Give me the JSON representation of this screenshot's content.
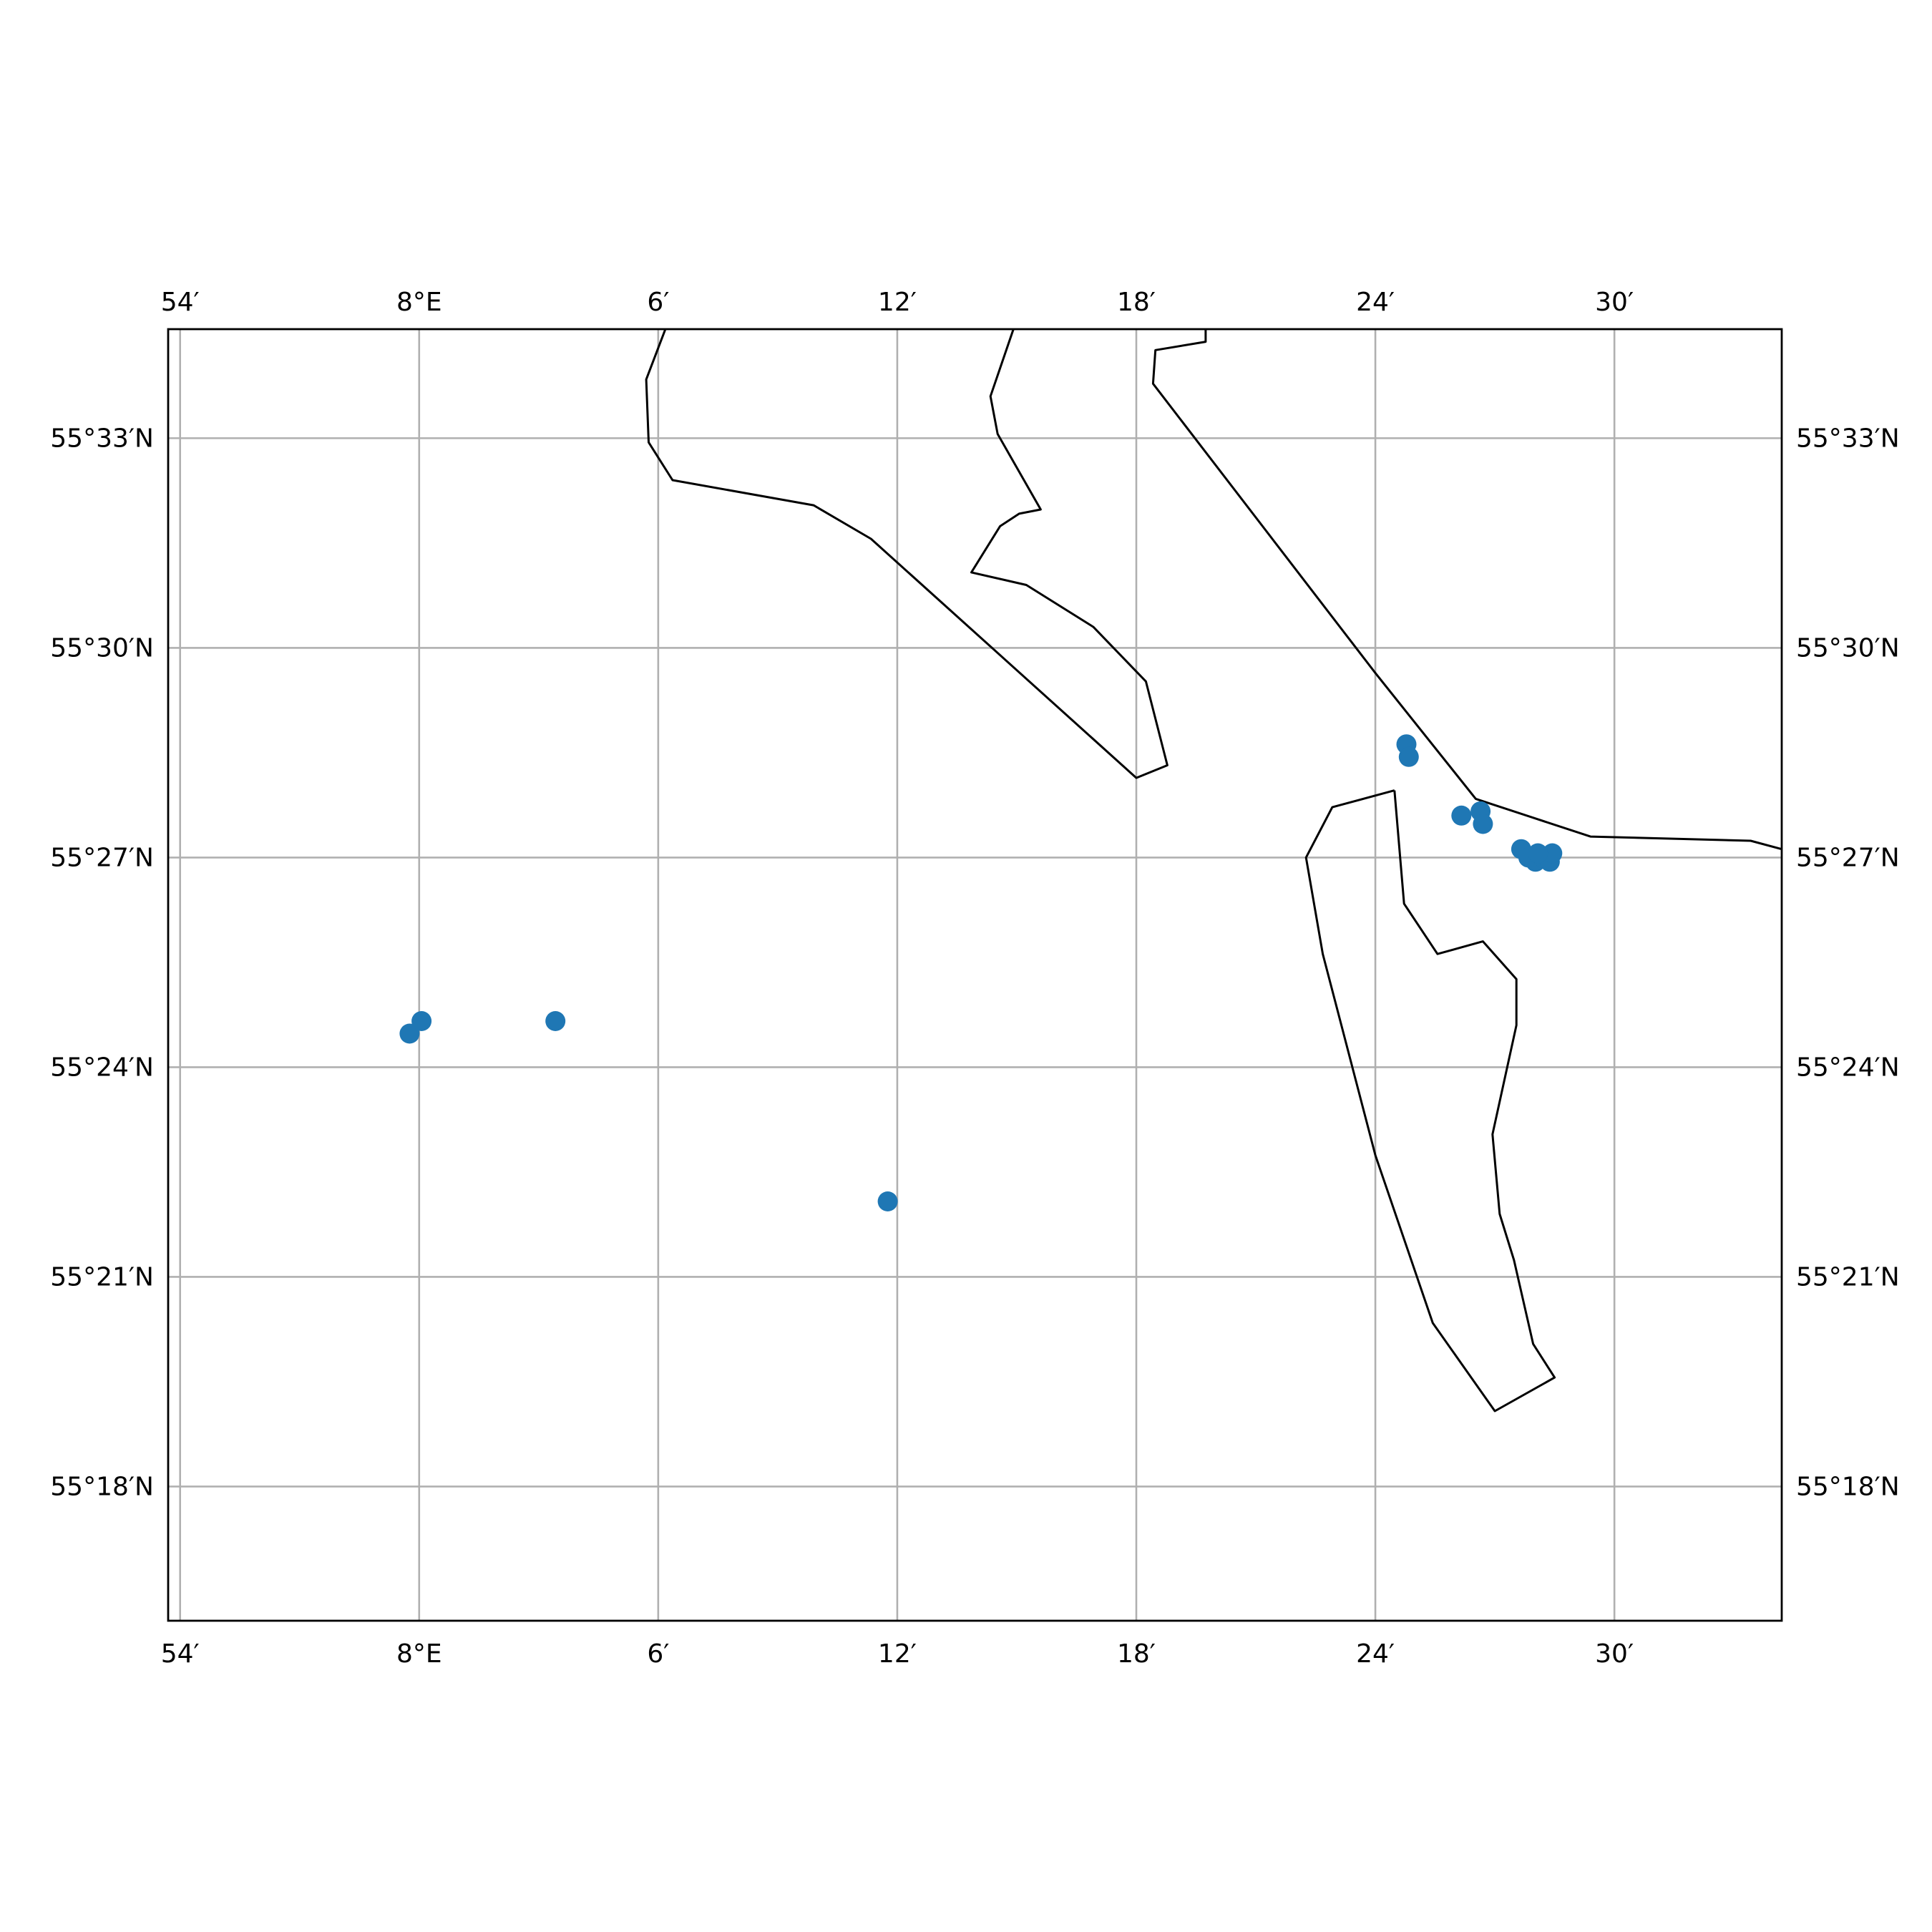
{
  "map": {
    "lon_ticks": [
      {
        "lon": 7.9,
        "label": "54′"
      },
      {
        "lon": 8.0,
        "label": "8°E"
      },
      {
        "lon": 8.1,
        "label": "6′"
      },
      {
        "lon": 8.2,
        "label": "12′"
      },
      {
        "lon": 8.3,
        "label": "18′"
      },
      {
        "lon": 8.4,
        "label": "24′"
      },
      {
        "lon": 8.5,
        "label": "30′"
      }
    ],
    "lat_ticks": [
      {
        "lat": 55.55,
        "label": "55°33′N"
      },
      {
        "lat": 55.5,
        "label": "55°30′N"
      },
      {
        "lat": 55.45,
        "label": "55°27′N"
      },
      {
        "lat": 55.4,
        "label": "55°24′N"
      },
      {
        "lat": 55.35,
        "label": "55°21′N"
      },
      {
        "lat": 55.3,
        "label": "55°18′N"
      }
    ],
    "extent": {
      "lon_min": 7.895,
      "lon_max": 8.57,
      "lat_min": 55.268,
      "lat_max": 55.576
    },
    "grid": true,
    "colors": {
      "points": "#1f77b4",
      "coastline": "#000000",
      "grid": "#b0b0b0"
    },
    "coastlines": [
      [
        [
          8.103,
          55.576
        ],
        [
          8.095,
          55.564
        ],
        [
          8.096,
          55.549
        ],
        [
          8.106,
          55.54
        ],
        [
          8.165,
          55.534
        ],
        [
          8.189,
          55.526
        ],
        [
          8.3,
          55.469
        ],
        [
          8.313,
          55.472
        ],
        [
          8.304,
          55.492
        ],
        [
          8.282,
          55.505
        ],
        [
          8.254,
          55.515
        ],
        [
          8.231,
          55.518
        ],
        [
          8.243,
          55.529
        ],
        [
          8.251,
          55.532
        ],
        [
          8.26,
          55.533
        ],
        [
          8.242,
          55.551
        ],
        [
          8.239,
          55.56
        ],
        [
          8.251,
          55.58
        ],
        [
          8.259,
          55.576
        ]
      ],
      [
        [
          8.329,
          55.576
        ],
        [
          8.329,
          55.573
        ],
        [
          8.308,
          55.571
        ],
        [
          8.307,
          55.563
        ],
        [
          8.4,
          55.494
        ],
        [
          8.442,
          55.464
        ],
        [
          8.49,
          55.455
        ],
        [
          8.557,
          55.454
        ],
        [
          8.57,
          55.452
        ]
      ],
      [
        [
          8.408,
          55.466
        ],
        [
          8.382,
          55.462
        ],
        [
          8.371,
          55.45
        ],
        [
          8.378,
          55.427
        ],
        [
          8.4,
          55.379
        ],
        [
          8.424,
          55.339
        ],
        [
          8.45,
          55.318
        ],
        [
          8.475,
          55.326
        ],
        [
          8.466,
          55.334
        ],
        [
          8.458,
          55.354
        ],
        [
          8.452,
          55.365
        ],
        [
          8.449,
          55.384
        ],
        [
          8.459,
          55.41
        ],
        [
          8.459,
          55.421
        ],
        [
          8.445,
          55.43
        ],
        [
          8.426,
          55.427
        ],
        [
          8.412,
          55.439
        ],
        [
          8.408,
          55.466
        ]
      ]
    ],
    "points": [
      [
        7.996,
        55.408
      ],
      [
        8.001,
        55.411
      ],
      [
        8.057,
        55.411
      ],
      [
        8.196,
        55.368
      ],
      [
        8.413,
        55.477
      ],
      [
        8.414,
        55.474
      ],
      [
        8.436,
        55.46
      ],
      [
        8.444,
        55.461
      ],
      [
        8.445,
        55.458
      ],
      [
        8.461,
        55.452
      ],
      [
        8.464,
        55.45
      ],
      [
        8.467,
        55.449
      ],
      [
        8.47,
        55.45
      ],
      [
        8.473,
        55.449
      ],
      [
        8.474,
        55.451
      ],
      [
        8.468,
        55.451
      ]
    ]
  }
}
